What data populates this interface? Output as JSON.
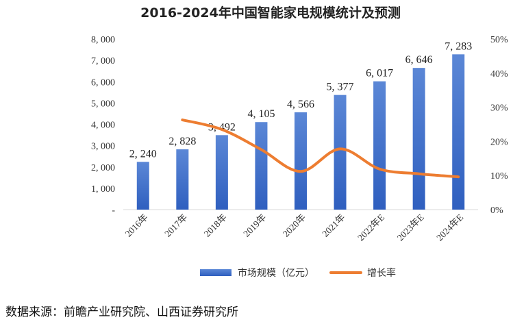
{
  "chart_data": {
    "type": "bar+line",
    "title": "2016-2024年中国智能家电规模统计及预测",
    "categories": [
      "2016年",
      "2017年",
      "2018年",
      "2019年",
      "2020年",
      "2021年",
      "2022年E",
      "2023年E",
      "2024年E"
    ],
    "series": [
      {
        "name": "市场规模（亿元）",
        "type": "bar",
        "axis": "left",
        "values": [
          2240,
          2828,
          3492,
          4105,
          4566,
          5377,
          6017,
          6646,
          7283
        ],
        "labels": [
          "2, 240",
          "2, 828",
          "3, 492",
          "4, 105",
          "4, 566",
          "5, 377",
          "6, 017",
          "6, 646",
          "7, 283"
        ]
      },
      {
        "name": "增长率",
        "type": "line",
        "axis": "right",
        "values": [
          null,
          26.3,
          23.5,
          17.6,
          11.2,
          17.8,
          11.9,
          10.5,
          9.6
        ]
      }
    ],
    "left_axis": {
      "ylim": [
        0,
        8000
      ],
      "ticks": [
        0,
        1000,
        2000,
        3000,
        4000,
        5000,
        6000,
        7000,
        8000
      ],
      "tick_labels": [
        "-",
        "1, 000",
        "2, 000",
        "3, 000",
        "4, 000",
        "5, 000",
        "6, 000",
        "7, 000",
        "8, 000"
      ]
    },
    "right_axis": {
      "ylim": [
        0,
        50
      ],
      "ticks": [
        0,
        10,
        20,
        30,
        40,
        50
      ],
      "tick_labels": [
        "0%",
        "10%",
        "20%",
        "30%",
        "40%",
        "50%"
      ]
    },
    "colors": {
      "bar_top": "#5b87d6",
      "bar_bottom": "#2f5fbf",
      "line": "#ed7d31"
    },
    "legend": {
      "position": "bottom",
      "items": [
        "市场规模（亿元）",
        "增长率"
      ]
    }
  },
  "source_text": "数据来源：前瞻产业研究院、山西证券研究所"
}
